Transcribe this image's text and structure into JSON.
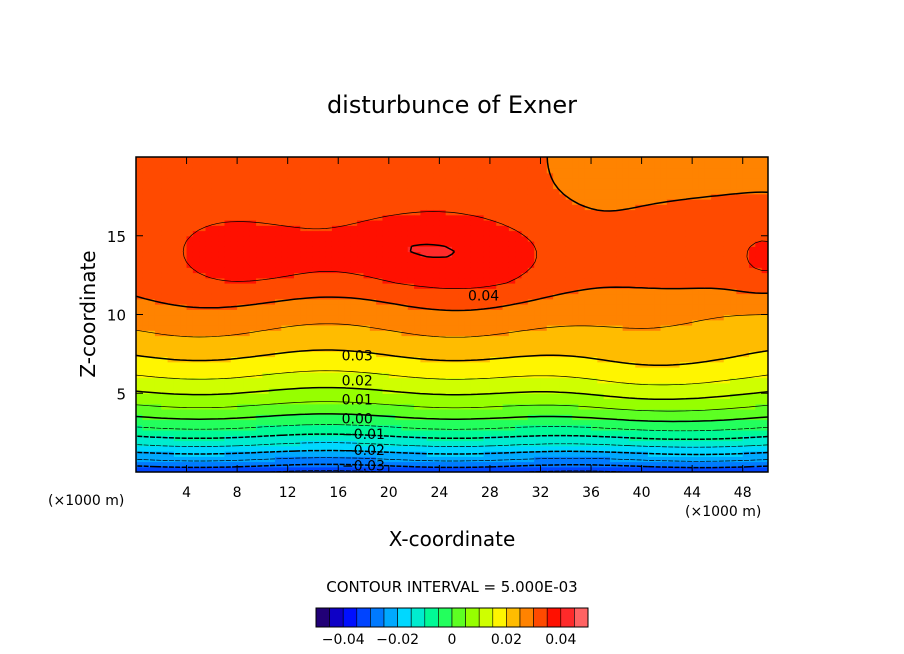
{
  "chart_data": {
    "type": "heatmap",
    "title": "disturbunce of Exner",
    "xlabel": "X-coordinate",
    "ylabel": "Z-coordinate",
    "x_unit_left": "(×1000 m)",
    "x_unit_right": "(×1000 m)",
    "xlim": [
      0,
      50
    ],
    "ylim": [
      0,
      20
    ],
    "x_ticks": [
      4,
      8,
      12,
      16,
      20,
      24,
      28,
      32,
      36,
      40,
      44,
      48
    ],
    "x_tick_labels": [
      "4",
      "8",
      "12",
      "16",
      "20",
      "24",
      "28",
      "32",
      "36",
      "40",
      "44",
      "48"
    ],
    "y_ticks": [
      5,
      10,
      15
    ],
    "y_tick_labels": [
      "5",
      "10",
      "15"
    ],
    "contour_interval_text": "CONTOUR INTERVAL = 5.000E-03",
    "contour_interval": 0.005,
    "field_range": [
      -0.035,
      0.047
    ],
    "contour_labels": [
      {
        "text": "0.04",
        "x": 27.5,
        "y": 11.2
      },
      {
        "text": "0.03",
        "x": 17.5,
        "y": 7.4
      },
      {
        "text": "0.02",
        "x": 17.5,
        "y": 5.8
      },
      {
        "text": "0.01",
        "x": 17.5,
        "y": 4.6
      },
      {
        "text": "0.00",
        "x": 17.5,
        "y": 3.4
      },
      {
        "text": "−0.01",
        "x": 18,
        "y": 2.4
      },
      {
        "text": "−0.02",
        "x": 18,
        "y": 1.4
      },
      {
        "text": "−0.03",
        "x": 18,
        "y": 0.4
      }
    ],
    "colorbar": {
      "range": [
        -0.05,
        0.05
      ],
      "tick_values": [
        -0.04,
        -0.02,
        0,
        0.02,
        0.04
      ],
      "tick_labels": [
        "−0.04",
        "−0.02",
        "0",
        "0.02",
        "0.04"
      ]
    },
    "colormap": [
      "#2a0050",
      "#0000ff",
      "#0077ff",
      "#00e0ff",
      "#00ff80",
      "#80ff00",
      "#ffff00",
      "#ff8000",
      "#ff0000",
      "#ff8080"
    ]
  }
}
